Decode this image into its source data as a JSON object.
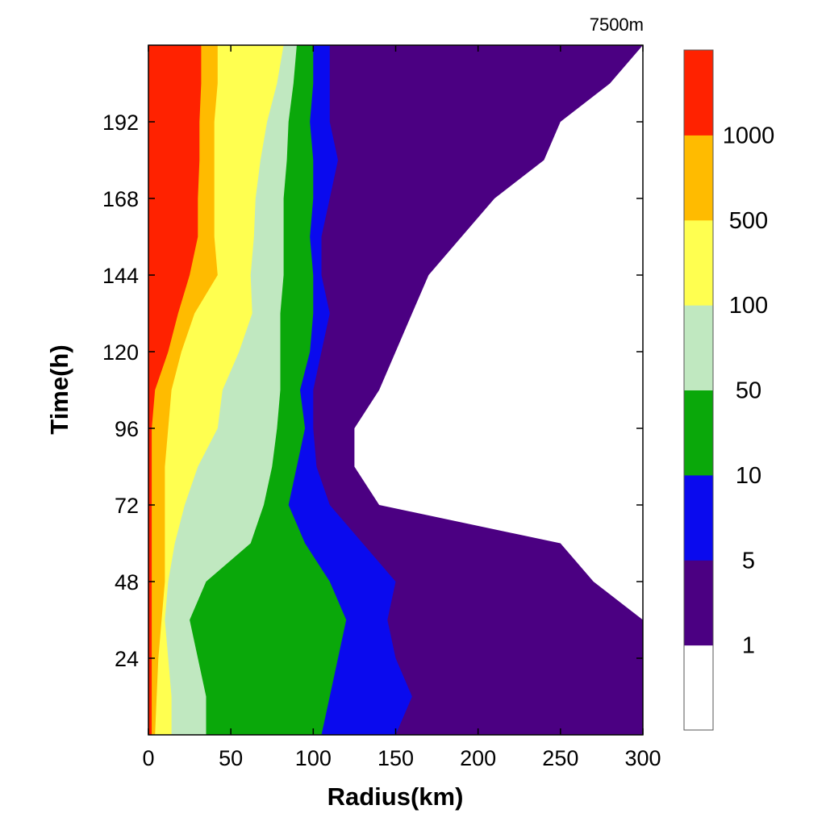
{
  "chart_data": {
    "type": "heatmap",
    "corner_label": "7500m",
    "xlabel": "Radius(km)",
    "ylabel": "Time(h)",
    "xlim": [
      0,
      300
    ],
    "ylim": [
      0,
      216
    ],
    "x_ticks": [
      "0",
      "50",
      "100",
      "150",
      "200",
      "250",
      "300"
    ],
    "y_ticks": [
      "24",
      "48",
      "72",
      "96",
      "120",
      "144",
      "168",
      "192"
    ],
    "colorbar": {
      "levels": [
        "1",
        "5",
        "10",
        "50",
        "100",
        "500",
        "1000"
      ],
      "colors": [
        "#ffffff",
        "#4b0082",
        "#0a0aee",
        "#0aa80a",
        "#c0e8c0",
        "#ffff50",
        "#ffbb00",
        "#ff2200"
      ]
    },
    "contour_boundaries": {
      "note": "",
      "time_h": [
        0,
        12,
        24,
        36,
        48,
        60,
        72,
        84,
        96,
        108,
        120,
        132,
        144,
        156,
        168,
        180,
        192,
        204,
        216
      ],
      "level_1000": [
        2,
        2,
        2,
        2,
        2,
        2,
        2,
        2,
        2,
        4,
        12,
        18,
        25,
        30,
        30,
        31,
        31,
        32,
        32
      ],
      "level_500": [
        4,
        5,
        6,
        8,
        10,
        10,
        10,
        10,
        12,
        14,
        20,
        28,
        42,
        40,
        40,
        40,
        40,
        42,
        42
      ],
      "level_100": [
        14,
        14,
        12,
        10,
        12,
        16,
        22,
        30,
        42,
        45,
        55,
        63,
        62,
        64,
        65,
        68,
        72,
        78,
        82
      ],
      "level_50": [
        35,
        35,
        30,
        25,
        35,
        62,
        70,
        75,
        78,
        80,
        80,
        80,
        82,
        82,
        82,
        84,
        85,
        88,
        90
      ],
      "level_10": [
        105,
        110,
        115,
        120,
        110,
        95,
        85,
        90,
        95,
        92,
        98,
        100,
        100,
        98,
        100,
        100,
        98,
        100,
        100
      ],
      "level_5": [
        150,
        160,
        150,
        145,
        150,
        130,
        110,
        102,
        100,
        100,
        105,
        110,
        105,
        105,
        110,
        115,
        110,
        110,
        110
      ],
      "level_1": [
        300,
        300,
        300,
        300,
        270,
        250,
        140,
        125,
        125,
        140,
        150,
        160,
        170,
        190,
        210,
        240,
        250,
        280,
        300
      ]
    }
  }
}
